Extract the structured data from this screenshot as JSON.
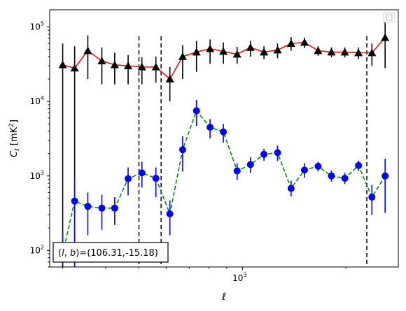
{
  "chart_data": {
    "type": "scatter",
    "xscale": "log",
    "yscale": "log",
    "xlabel": "ℓ",
    "ylabel": "C_ℓ [mK²]",
    "xlim": [
      275,
      2840
    ],
    "ylim": [
      60,
      170000
    ],
    "x_ticks": [
      {
        "value": 1000,
        "base": "10",
        "exp": "3"
      }
    ],
    "y_ticks": [
      {
        "value": 100,
        "base": "10",
        "exp": "2"
      },
      {
        "value": 1000,
        "base": "10",
        "exp": "3"
      },
      {
        "value": 10000,
        "base": "10",
        "exp": "4"
      },
      {
        "value": 100000,
        "base": "10",
        "exp": "5"
      }
    ],
    "annotation": "(l, b)=(106.31,-15.18)",
    "annotation_parts": {
      "open": "(",
      "l": "l",
      "comma": ", ",
      "b": "b",
      "close": ")=(106.31,-15.18)"
    },
    "legend": {
      "placement": "upper-right",
      "entries": []
    },
    "grid": false,
    "vlines": [
      500,
      580,
      2300
    ],
    "series": [
      {
        "marker": "triangle",
        "color": "#000000",
        "line_color": "#ff0000",
        "line_style": "solid",
        "points": [
          {
            "x": 300,
            "y": 31000,
            "lo": 60,
            "hi": 60000
          },
          {
            "x": 325,
            "y": 28000,
            "lo": 60,
            "hi": 55000
          },
          {
            "x": 355,
            "y": 48000,
            "lo": 20000,
            "hi": 77000
          },
          {
            "x": 390,
            "y": 35000,
            "lo": 17000,
            "hi": 53000
          },
          {
            "x": 425,
            "y": 31000,
            "lo": 17000,
            "hi": 45000
          },
          {
            "x": 465,
            "y": 30000,
            "lo": 17000,
            "hi": 42000
          },
          {
            "x": 510,
            "y": 29000,
            "lo": 17000,
            "hi": 39000
          },
          {
            "x": 560,
            "y": 29000,
            "lo": 18000,
            "hi": 40000
          },
          {
            "x": 615,
            "y": 20000,
            "lo": 10000,
            "hi": 29000
          },
          {
            "x": 670,
            "y": 40000,
            "lo": 20000,
            "hi": 57000
          },
          {
            "x": 735,
            "y": 46000,
            "lo": 25000,
            "hi": 65000
          },
          {
            "x": 805,
            "y": 51000,
            "lo": 32000,
            "hi": 68000
          },
          {
            "x": 880,
            "y": 47000,
            "lo": 32000,
            "hi": 62000
          },
          {
            "x": 965,
            "y": 43000,
            "lo": 32000,
            "hi": 54000
          },
          {
            "x": 1055,
            "y": 53000,
            "lo": 40000,
            "hi": 65000
          },
          {
            "x": 1155,
            "y": 46000,
            "lo": 37000,
            "hi": 55000
          },
          {
            "x": 1265,
            "y": 49000,
            "lo": 38000,
            "hi": 60000
          },
          {
            "x": 1385,
            "y": 60000,
            "lo": 48000,
            "hi": 73000
          },
          {
            "x": 1515,
            "y": 62000,
            "lo": 52000,
            "hi": 72000
          },
          {
            "x": 1660,
            "y": 48000,
            "lo": 41000,
            "hi": 55000
          },
          {
            "x": 1815,
            "y": 46000,
            "lo": 39000,
            "hi": 53000
          },
          {
            "x": 1985,
            "y": 46000,
            "lo": 39000,
            "hi": 53000
          },
          {
            "x": 2175,
            "y": 45000,
            "lo": 37000,
            "hi": 53000
          },
          {
            "x": 2380,
            "y": 45000,
            "lo": 30000,
            "hi": 60000
          },
          {
            "x": 2600,
            "y": 72000,
            "lo": 28000,
            "hi": 120000
          }
        ]
      },
      {
        "marker": "circle",
        "color": "#0000ff",
        "line_color": "#008000",
        "line_style": "dashed",
        "points": [
          {
            "x": 300,
            "y": 90,
            "lo": 60,
            "hi": 170
          },
          {
            "x": 325,
            "y": 460,
            "lo": 60,
            "hi": 900
          },
          {
            "x": 355,
            "y": 390,
            "lo": 160,
            "hi": 600
          },
          {
            "x": 390,
            "y": 370,
            "lo": 190,
            "hi": 560
          },
          {
            "x": 425,
            "y": 370,
            "lo": 220,
            "hi": 520
          },
          {
            "x": 465,
            "y": 920,
            "lo": 550,
            "hi": 1300
          },
          {
            "x": 510,
            "y": 1100,
            "lo": 700,
            "hi": 1550
          },
          {
            "x": 560,
            "y": 930,
            "lo": 520,
            "hi": 1300
          },
          {
            "x": 615,
            "y": 310,
            "lo": 160,
            "hi": 470
          },
          {
            "x": 670,
            "y": 2250,
            "lo": 1150,
            "hi": 3400
          },
          {
            "x": 735,
            "y": 7500,
            "lo": 4700,
            "hi": 10500
          },
          {
            "x": 805,
            "y": 4500,
            "lo": 3200,
            "hi": 5800
          },
          {
            "x": 880,
            "y": 3900,
            "lo": 2800,
            "hi": 5000
          },
          {
            "x": 965,
            "y": 1170,
            "lo": 880,
            "hi": 1480
          },
          {
            "x": 1055,
            "y": 1420,
            "lo": 1100,
            "hi": 1780
          },
          {
            "x": 1155,
            "y": 1950,
            "lo": 1600,
            "hi": 2320
          },
          {
            "x": 1265,
            "y": 2050,
            "lo": 1580,
            "hi": 2550
          },
          {
            "x": 1385,
            "y": 680,
            "lo": 530,
            "hi": 860
          },
          {
            "x": 1515,
            "y": 1200,
            "lo": 950,
            "hi": 1480
          },
          {
            "x": 1660,
            "y": 1350,
            "lo": 1150,
            "hi": 1550
          },
          {
            "x": 1815,
            "y": 1000,
            "lo": 840,
            "hi": 1180
          },
          {
            "x": 1985,
            "y": 930,
            "lo": 780,
            "hi": 1100
          },
          {
            "x": 2175,
            "y": 1380,
            "lo": 1170,
            "hi": 1600
          },
          {
            "x": 2380,
            "y": 520,
            "lo": 300,
            "hi": 760
          },
          {
            "x": 2600,
            "y": 1000,
            "lo": 320,
            "hi": 1700
          }
        ]
      }
    ]
  }
}
